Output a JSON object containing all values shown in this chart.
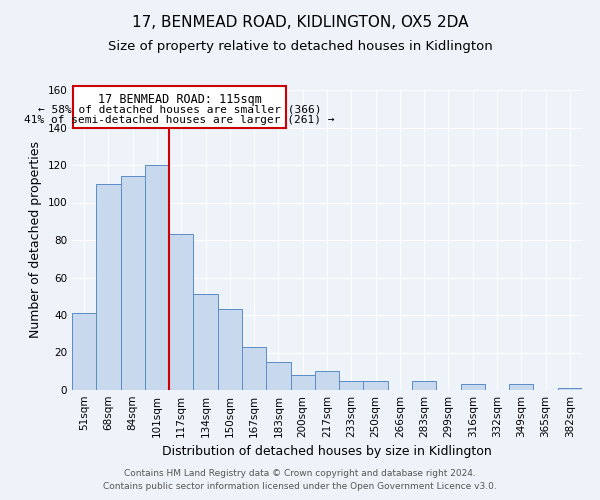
{
  "title": "17, BENMEAD ROAD, KIDLINGTON, OX5 2DA",
  "subtitle": "Size of property relative to detached houses in Kidlington",
  "xlabel": "Distribution of detached houses by size in Kidlington",
  "ylabel": "Number of detached properties",
  "bin_labels": [
    "51sqm",
    "68sqm",
    "84sqm",
    "101sqm",
    "117sqm",
    "134sqm",
    "150sqm",
    "167sqm",
    "183sqm",
    "200sqm",
    "217sqm",
    "233sqm",
    "250sqm",
    "266sqm",
    "283sqm",
    "299sqm",
    "316sqm",
    "332sqm",
    "349sqm",
    "365sqm",
    "382sqm"
  ],
  "bar_values": [
    41,
    110,
    114,
    120,
    83,
    51,
    43,
    23,
    15,
    8,
    10,
    5,
    5,
    0,
    5,
    0,
    3,
    0,
    3,
    0,
    1
  ],
  "bar_color": "#c9d9ed",
  "bar_edge_color": "#5b8cc8",
  "vline_color": "#cc0000",
  "ylim": [
    0,
    160
  ],
  "yticks": [
    0,
    20,
    40,
    60,
    80,
    100,
    120,
    140,
    160
  ],
  "annotation_title": "17 BENMEAD ROAD: 115sqm",
  "annotation_line1": "← 58% of detached houses are smaller (366)",
  "annotation_line2": "41% of semi-detached houses are larger (261) →",
  "annotation_box_color": "#ffffff",
  "annotation_box_edge": "#cc0000",
  "footer_line1": "Contains HM Land Registry data © Crown copyright and database right 2024.",
  "footer_line2": "Contains public sector information licensed under the Open Government Licence v3.0.",
  "background_color": "#eef2f9",
  "grid_color": "#ffffff",
  "title_fontsize": 11,
  "subtitle_fontsize": 9.5,
  "axis_label_fontsize": 9,
  "tick_fontsize": 7.5,
  "annotation_title_fontsize": 8.5,
  "annotation_text_fontsize": 8.0,
  "footer_fontsize": 6.5
}
